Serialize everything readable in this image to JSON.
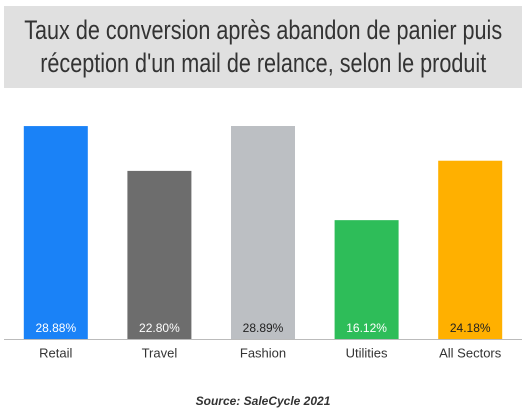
{
  "chart_data": {
    "type": "bar",
    "title": "Taux de conversion après abandon de panier puis réception d'un mail de relance, selon le produit",
    "categories": [
      "Retail",
      "Travel",
      "Fashion",
      "Utilities",
      "All Sectors"
    ],
    "values": [
      28.88,
      22.8,
      28.89,
      16.12,
      24.18
    ],
    "value_labels": [
      "28.88%",
      "22.80%",
      "28.89%",
      "16.12%",
      "24.18%"
    ],
    "colors": [
      "#1a82f7",
      "#6d6d6d",
      "#bcbfc3",
      "#2ebd59",
      "#ffb000"
    ],
    "source": "Source: SaleCycle 2021"
  }
}
